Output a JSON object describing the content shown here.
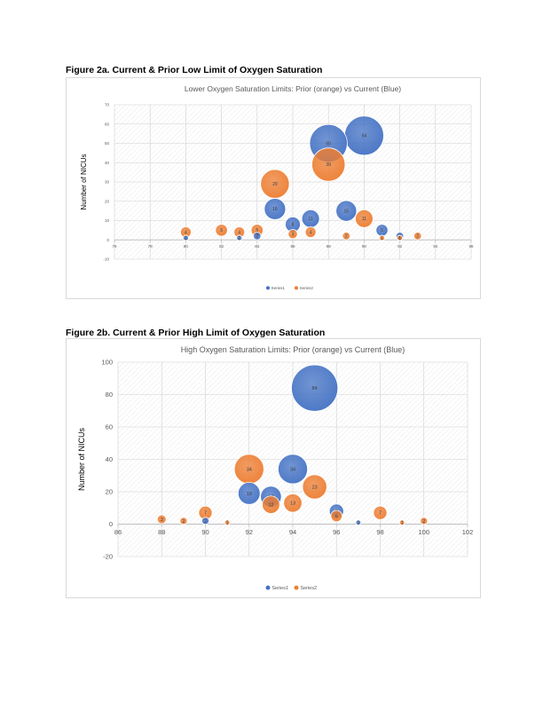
{
  "figures": [
    {
      "caption": "Figure 2a. Current & Prior Low Limit of Oxygen Saturation"
    },
    {
      "caption": "Figure 2b. Current & Prior High Limit of Oxygen Saturation"
    }
  ],
  "chart_data": [
    {
      "type": "bubble",
      "title": "Lower Oxygen Saturation Limits: Prior (orange) vs Current (Blue)",
      "xlabel": "",
      "ylabel": "Number of NICUs",
      "xlim": [
        76,
        96
      ],
      "ylim": [
        -10,
        70
      ],
      "xticks": [
        76,
        78,
        80,
        82,
        84,
        86,
        88,
        90,
        92,
        94,
        96
      ],
      "yticks": [
        -10,
        0,
        10,
        20,
        30,
        40,
        50,
        60,
        70
      ],
      "grid": true,
      "legend": "bottom",
      "series": [
        {
          "name": "Series1",
          "color": "#4472c4",
          "points": [
            {
              "x": 80,
              "y": 1,
              "label": "1"
            },
            {
              "x": 83,
              "y": 1,
              "label": "1"
            },
            {
              "x": 84,
              "y": 2,
              "label": "2"
            },
            {
              "x": 85,
              "y": 16,
              "label": "16"
            },
            {
              "x": 86,
              "y": 8,
              "label": "8"
            },
            {
              "x": 87,
              "y": 11,
              "label": "11"
            },
            {
              "x": 88,
              "y": 50,
              "label": "50"
            },
            {
              "x": 89,
              "y": 15,
              "label": "15"
            },
            {
              "x": 90,
              "y": 54,
              "label": "54"
            },
            {
              "x": 91,
              "y": 5,
              "label": "5"
            },
            {
              "x": 92,
              "y": 2,
              "label": "2"
            }
          ]
        },
        {
          "name": "Series2",
          "color": "#ed7d31",
          "points": [
            {
              "x": 80,
              "y": 4,
              "label": "4"
            },
            {
              "x": 82,
              "y": 5,
              "label": "5"
            },
            {
              "x": 83,
              "y": 4,
              "label": "4"
            },
            {
              "x": 84,
              "y": 5,
              "label": "5"
            },
            {
              "x": 85,
              "y": 29,
              "label": "29"
            },
            {
              "x": 86,
              "y": 3,
              "label": "3"
            },
            {
              "x": 87,
              "y": 4,
              "label": "4"
            },
            {
              "x": 88,
              "y": 39,
              "label": "39"
            },
            {
              "x": 89,
              "y": 2,
              "label": "2"
            },
            {
              "x": 90,
              "y": 11,
              "label": "11"
            },
            {
              "x": 91,
              "y": 1,
              "label": "1"
            },
            {
              "x": 92,
              "y": 1,
              "label": "1"
            },
            {
              "x": 93,
              "y": 2,
              "label": "2"
            }
          ]
        }
      ]
    },
    {
      "type": "bubble",
      "title": "High Oxygen Saturation Limits: Prior (orange) vs Current (Blue)",
      "xlabel": "",
      "ylabel": "Number of NICUs",
      "xlim": [
        86,
        102
      ],
      "ylim": [
        -20,
        100
      ],
      "xticks": [
        86,
        88,
        90,
        92,
        94,
        96,
        98,
        100,
        102
      ],
      "yticks": [
        -20,
        0,
        20,
        40,
        60,
        80,
        100
      ],
      "grid": true,
      "legend": "bottom",
      "series": [
        {
          "name": "Series1",
          "color": "#4472c4",
          "points": [
            {
              "x": 90,
              "y": 2,
              "label": "2"
            },
            {
              "x": 92,
              "y": 19,
              "label": "19"
            },
            {
              "x": 93,
              "y": 17,
              "label": "17"
            },
            {
              "x": 94,
              "y": 34,
              "label": "34"
            },
            {
              "x": 95,
              "y": 84,
              "label": "84"
            },
            {
              "x": 96,
              "y": 8,
              "label": "8"
            },
            {
              "x": 97,
              "y": 1,
              "label": "1"
            }
          ]
        },
        {
          "name": "Series2",
          "color": "#ed7d31",
          "points": [
            {
              "x": 88,
              "y": 3,
              "label": "3"
            },
            {
              "x": 89,
              "y": 2,
              "label": "2"
            },
            {
              "x": 90,
              "y": 7,
              "label": "7"
            },
            {
              "x": 91,
              "y": 1,
              "label": "1"
            },
            {
              "x": 92,
              "y": 34,
              "label": "34"
            },
            {
              "x": 93,
              "y": 12,
              "label": "12"
            },
            {
              "x": 94,
              "y": 13,
              "label": "13"
            },
            {
              "x": 95,
              "y": 23,
              "label": "23"
            },
            {
              "x": 96,
              "y": 5,
              "label": "5"
            },
            {
              "x": 98,
              "y": 7,
              "label": "7"
            },
            {
              "x": 99,
              "y": 1,
              "label": "1"
            },
            {
              "x": 100,
              "y": 2,
              "label": "2"
            }
          ]
        }
      ]
    }
  ]
}
